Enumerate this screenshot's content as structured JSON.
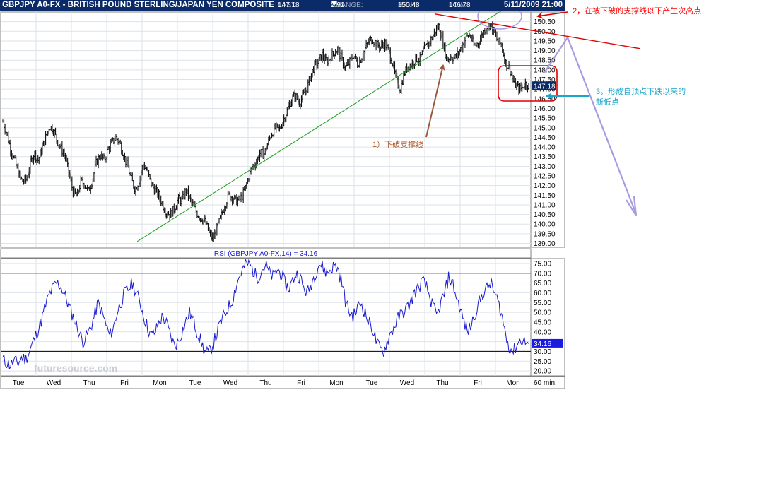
{
  "header": {
    "symbol": "GBPJPY A0-FX - BRITISH POUND STERLING/JAPAN YEN COMPOSITE",
    "last_label": "LAST:",
    "last": "147.18",
    "change_label": "CHANGE:",
    "change": "2.91",
    "change_direction": "down",
    "high_label": "HIGH:",
    "high": "150.48",
    "low_label": "LOW:",
    "low": "146.78",
    "datetime": "5/11/2009 21:00"
  },
  "chart_data": [
    {
      "type": "line",
      "subtype": "price-bars",
      "y_axis_side": "right",
      "ylim": [
        138.8,
        151.0
      ],
      "y_ticks": [
        "139.00",
        "139.50",
        "140.00",
        "140.50",
        "141.00",
        "141.50",
        "142.00",
        "142.50",
        "143.00",
        "143.50",
        "144.00",
        "144.50",
        "145.00",
        "145.50",
        "146.00",
        "146.50",
        "147.00",
        "147.50",
        "148.00",
        "148.50",
        "149.00",
        "149.50",
        "150.00",
        "150.50"
      ],
      "x_tick_labels": [
        "Tue",
        "Wed",
        "Thu",
        "Fri",
        "Mon",
        "Tue",
        "Wed",
        "Thu",
        "Fri",
        "Mon",
        "Tue",
        "Wed",
        "Thu",
        "Fri",
        "Mon"
      ],
      "x_unit_label": "60 min.",
      "last_value": 147.18,
      "last_value_label": "147.18",
      "grid": true,
      "series": [
        {
          "values": [
            145.3,
            144.7,
            143.9,
            143.3,
            142.6,
            142.2,
            142.3,
            143.1,
            143.7,
            143.3,
            143.9,
            144.5,
            145.1,
            144.9,
            144.3,
            143.9,
            143.5,
            142.6,
            141.7,
            141.4,
            142.2,
            142.1,
            141.7,
            142.3,
            143.2,
            143.6,
            143.3,
            143.9,
            144.2,
            144.5,
            144.2,
            143.6,
            143.0,
            142.3,
            141.8,
            142.3,
            143.1,
            142.8,
            142.1,
            141.8,
            141.5,
            141.0,
            140.6,
            140.5,
            140.8,
            141.3,
            141.2,
            141.8,
            141.3,
            140.9,
            140.5,
            140.3,
            140.1,
            139.5,
            139.2,
            139.8,
            140.4,
            141.0,
            141.5,
            141.4,
            141.2,
            141.3,
            141.7,
            142.4,
            143.0,
            143.2,
            143.7,
            143.6,
            144.2,
            144.7,
            145.0,
            144.9,
            145.4,
            145.9,
            146.4,
            146.7,
            146.3,
            146.6,
            147.0,
            147.7,
            148.2,
            148.4,
            148.8,
            148.4,
            148.6,
            148.9,
            149.1,
            148.5,
            148.1,
            148.4,
            148.8,
            148.3,
            148.6,
            149.1,
            149.5,
            149.6,
            149.3,
            149.2,
            149.4,
            149.0,
            148.4,
            147.4,
            147.0,
            147.8,
            148.2,
            148.3,
            148.6,
            148.5,
            149.0,
            149.3,
            149.6,
            150.0,
            150.3,
            149.4,
            148.5,
            148.7,
            148.6,
            148.9,
            149.3,
            149.7,
            149.8,
            149.2,
            149.4,
            149.8,
            150.2,
            150.4,
            150.0,
            149.5,
            149.3,
            148.4,
            148.1,
            147.4,
            147.1,
            147.0,
            147.3,
            147.2
          ]
        }
      ],
      "trendlines": [
        {
          "name": "support",
          "from": [
            0.2575,
            139.1
          ],
          "to": [
            0.9465,
            151.1
          ],
          "color": "#22a022"
        },
        {
          "name": "resistance",
          "from": [
            0.8185,
            150.9
          ],
          "to": [
            1.2065,
            149.1
          ],
          "color": "#e00000"
        }
      ]
    },
    {
      "type": "line",
      "title": "RSI (GBPJPY A0-FX,14) = 34.16",
      "y_axis_side": "right",
      "ylim": [
        17.5,
        77.5
      ],
      "y_ticks": [
        "20.00",
        "25.00",
        "30.00",
        "35.00",
        "40.00",
        "45.00",
        "50.00",
        "55.00",
        "60.00",
        "65.00",
        "70.00",
        "75.00"
      ],
      "reference_lines": [
        30,
        70
      ],
      "last_value": 34.16,
      "last_value_label": "34.16",
      "series": [
        {
          "values": [
            26,
            24,
            23,
            25,
            24,
            27,
            26,
            30,
            35,
            40,
            45,
            52,
            58,
            62,
            65,
            64,
            60,
            55,
            50,
            45,
            40,
            35,
            38,
            42,
            48,
            55,
            50,
            44,
            38,
            42,
            50,
            55,
            60,
            62,
            65,
            60,
            55,
            48,
            42,
            38,
            40,
            45,
            48,
            44,
            38,
            33,
            35,
            40,
            45,
            50,
            46,
            40,
            35,
            30,
            29,
            33,
            38,
            44,
            48,
            52,
            55,
            62,
            68,
            72,
            75,
            74,
            70,
            68,
            72,
            74,
            70,
            68,
            72,
            70,
            65,
            62,
            66,
            70,
            68,
            62,
            60,
            65,
            70,
            75,
            73,
            70,
            72,
            74,
            72,
            65,
            55,
            50,
            48,
            52,
            55,
            50,
            45,
            42,
            35,
            31,
            30,
            36,
            40,
            44,
            48,
            50,
            52,
            55,
            60,
            62,
            66,
            64,
            58,
            52,
            48,
            55,
            60,
            68,
            65,
            58,
            52,
            45,
            40,
            44,
            50,
            55,
            60,
            62,
            65,
            60,
            55,
            48,
            38,
            32,
            30,
            34,
            36,
            35,
            34
          ]
        }
      ]
    }
  ],
  "annotations": {
    "ann1": "1）下破支撑线",
    "ann2": "2，在被下破的支撑线以下产生次高点",
    "ann3_line1": "3，形成自顶点下跌以来的",
    "ann3_line2": "新低点"
  },
  "watermark": "futuresource.com",
  "colors": {
    "titlebar_bg": "#0b2a68",
    "price_bars": "#111111",
    "rsi_line": "#1a1acc",
    "label_box": "#0b2a68",
    "support_line": "#22a022",
    "resistance_line": "#e00000",
    "arrow_brown": "#9a5a3a",
    "arrow_lavender": "#a99be0",
    "arrow_cyan": "#1aa6c8",
    "box_red": "#e00000"
  }
}
